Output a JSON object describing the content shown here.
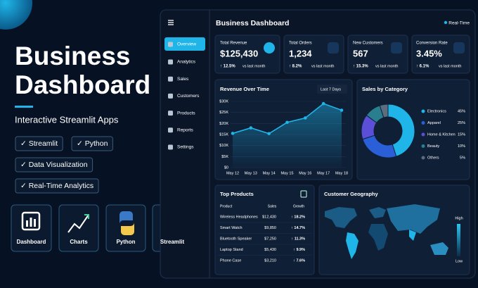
{
  "hero": {
    "title_line1": "Business",
    "title_line2": "Dashboard",
    "subtitle": "Interactive Streamlit Apps",
    "tags": [
      "✓ Streamlit",
      "✓ Python",
      "✓ Data Visualization",
      "✓ Real-Time Analytics"
    ],
    "apps": [
      "Dashboard",
      "Charts",
      "Python",
      "Streamlit"
    ]
  },
  "dashboard": {
    "title": "Business Dashboard",
    "status": "Real-Time",
    "nav": [
      "Overview",
      "Analytics",
      "Sales",
      "Customers",
      "Products",
      "Reports",
      "Settings"
    ],
    "kpis": [
      {
        "label": "Total Revenue",
        "value": "$125,430",
        "change": "↑ 12.5%",
        "note": "vs last month"
      },
      {
        "label": "Total Orders",
        "value": "1,234",
        "change": "↑ 8.2%",
        "note": "vs last month"
      },
      {
        "label": "New Customers",
        "value": "567",
        "change": "↑ 15.3%",
        "note": "vs last month"
      },
      {
        "label": "Conversion Rate",
        "value": "3.45%",
        "change": "↑ 6.1%",
        "note": "vs last month"
      }
    ],
    "revenue_chart": {
      "type": "line",
      "title": "Revenue Over Time",
      "range": "Last 7 Days",
      "categories": [
        "May 12",
        "May 13",
        "May 14",
        "May 15",
        "May 16",
        "May 17",
        "May 18"
      ],
      "values": [
        15.5,
        18,
        15.4,
        20.5,
        22.5,
        29,
        26
      ],
      "color": "#1fb5e8",
      "ylim": [
        0,
        30
      ],
      "yticks": [
        {
          "value": 0,
          "label": "$0"
        },
        {
          "value": 5,
          "label": "$5K"
        },
        {
          "value": 10,
          "label": "$10K"
        },
        {
          "value": 15,
          "label": "$15K"
        },
        {
          "value": 20,
          "label": "$20K"
        },
        {
          "value": 25,
          "label": "$25K"
        },
        {
          "value": 30,
          "label": "$30K"
        }
      ]
    },
    "category_chart": {
      "type": "pie",
      "title": "Sales by Category",
      "categories": [
        "Electronics",
        "Apparel",
        "Home & Kitchen",
        "Beauty",
        "Others"
      ],
      "values": [
        45,
        25,
        15,
        10,
        5
      ],
      "value_labels": [
        "45%",
        "25%",
        "15%",
        "10%",
        "5%"
      ],
      "colors": [
        "#1fb5e8",
        "#2a5fd8",
        "#5b4fd8",
        "#2a7f8f",
        "#5a6e80"
      ]
    },
    "top_products": {
      "title": "Top Products",
      "columns": [
        "Product",
        "Sales",
        "Growth"
      ],
      "rows": [
        [
          "Wireless Headphones",
          "$12,430",
          "↑ 18.2%"
        ],
        [
          "Smart Watch",
          "$9,850",
          "↑ 14.7%"
        ],
        [
          "Bluetooth Speaker",
          "$7,250",
          "↑ 11.3%"
        ],
        [
          "Laptop Stand",
          "$5,430",
          "↑ 9.9%"
        ],
        [
          "Phone Case",
          "$3,210",
          "↑ 7.6%"
        ]
      ]
    },
    "geography": {
      "title": "Customer Geography",
      "legend_high": "High",
      "legend_low": "Low"
    }
  }
}
